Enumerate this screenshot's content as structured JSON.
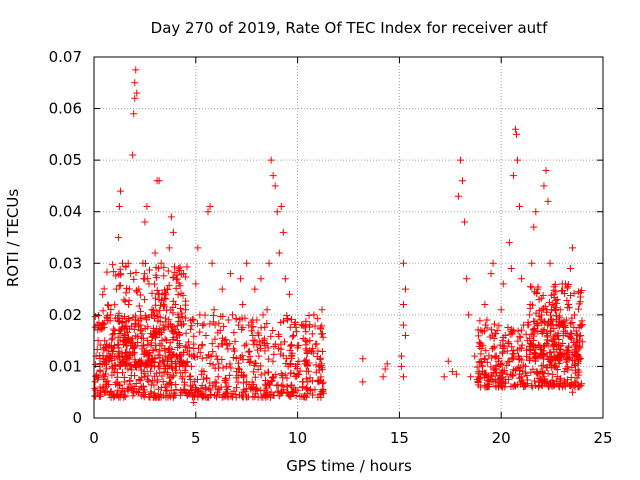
{
  "chart_data": {
    "type": "scatter",
    "title": "Day 270 of 2019, Rate Of TEC Index for receiver autf",
    "xlabel": "GPS time / hours",
    "ylabel": "ROTI / TECUs",
    "xlim": [
      0,
      25
    ],
    "ylim": [
      0,
      0.07
    ],
    "xticks": [
      0,
      5,
      10,
      15,
      20,
      25
    ],
    "yticks": [
      0,
      0.01,
      0.02,
      0.03,
      0.04,
      0.05,
      0.06,
      0.07
    ],
    "xtick_labels": [
      "0",
      "5",
      "10",
      "15",
      "20",
      "25"
    ],
    "ytick_labels": [
      "0",
      "0.01",
      "0.02",
      "0.03",
      "0.04",
      "0.05",
      "0.06",
      "0.07"
    ],
    "grid": true,
    "marker": "+",
    "color": "#ff0000",
    "series": [
      {
        "name": "ROTI",
        "points": [
          [
            0.1,
            0.012
          ],
          [
            0.2,
            0.015
          ],
          [
            0.3,
            0.009
          ],
          [
            0.4,
            0.018
          ],
          [
            0.5,
            0.011
          ],
          [
            0.6,
            0.007
          ],
          [
            0.7,
            0.013
          ],
          [
            0.8,
            0.02
          ],
          [
            0.9,
            0.01
          ],
          [
            1.0,
            0.014
          ],
          [
            1.1,
            0.025
          ],
          [
            1.2,
            0.035
          ],
          [
            1.25,
            0.041
          ],
          [
            1.3,
            0.044
          ],
          [
            1.4,
            0.03
          ],
          [
            1.5,
            0.016
          ],
          [
            1.6,
            0.012
          ],
          [
            1.7,
            0.022
          ],
          [
            1.8,
            0.028
          ],
          [
            1.9,
            0.051
          ],
          [
            1.95,
            0.059
          ],
          [
            2.0,
            0.062
          ],
          [
            2.0,
            0.065
          ],
          [
            2.05,
            0.0675
          ],
          [
            2.1,
            0.063
          ],
          [
            2.2,
            0.025
          ],
          [
            2.3,
            0.018
          ],
          [
            2.4,
            0.03
          ],
          [
            2.5,
            0.038
          ],
          [
            2.6,
            0.041
          ],
          [
            2.7,
            0.026
          ],
          [
            2.8,
            0.014
          ],
          [
            2.9,
            0.02
          ],
          [
            3.0,
            0.032
          ],
          [
            3.1,
            0.046
          ],
          [
            3.2,
            0.046
          ],
          [
            3.3,
            0.03
          ],
          [
            3.4,
            0.018
          ],
          [
            3.5,
            0.012
          ],
          [
            3.6,
            0.025
          ],
          [
            3.7,
            0.033
          ],
          [
            3.8,
            0.039
          ],
          [
            3.9,
            0.036
          ],
          [
            4.0,
            0.022
          ],
          [
            4.1,
            0.015
          ],
          [
            4.2,
            0.01
          ],
          [
            4.3,
            0.018
          ],
          [
            4.4,
            0.028
          ],
          [
            4.5,
            0.021
          ],
          [
            4.6,
            0.013
          ],
          [
            4.7,
            0.008
          ],
          [
            4.8,
            0.012
          ],
          [
            4.9,
            0.019
          ],
          [
            5.0,
            0.026
          ],
          [
            5.1,
            0.033
          ],
          [
            5.2,
            0.02
          ],
          [
            5.3,
            0.014
          ],
          [
            5.4,
            0.009
          ],
          [
            5.5,
            0.016
          ],
          [
            5.6,
            0.04
          ],
          [
            5.7,
            0.041
          ],
          [
            5.8,
            0.03
          ],
          [
            5.9,
            0.021
          ],
          [
            6.0,
            0.012
          ],
          [
            6.1,
            0.008
          ],
          [
            6.2,
            0.017
          ],
          [
            6.3,
            0.025
          ],
          [
            6.4,
            0.015
          ],
          [
            6.5,
            0.01
          ],
          [
            6.6,
            0.019
          ],
          [
            6.7,
            0.028
          ],
          [
            6.8,
            0.02
          ],
          [
            6.9,
            0.013
          ],
          [
            7.0,
            0.009
          ],
          [
            7.1,
            0.018
          ],
          [
            7.2,
            0.027
          ],
          [
            7.3,
            0.022
          ],
          [
            7.4,
            0.014
          ],
          [
            7.5,
            0.03
          ],
          [
            7.6,
            0.018
          ],
          [
            7.7,
            0.011
          ],
          [
            7.8,
            0.016
          ],
          [
            7.9,
            0.025
          ],
          [
            8.0,
            0.019
          ],
          [
            8.1,
            0.012
          ],
          [
            8.2,
            0.027
          ],
          [
            8.3,
            0.02
          ],
          [
            8.4,
            0.014
          ],
          [
            8.5,
            0.021
          ],
          [
            8.6,
            0.03
          ],
          [
            8.7,
            0.05
          ],
          [
            8.8,
            0.047
          ],
          [
            8.9,
            0.045
          ],
          [
            9.0,
            0.04
          ],
          [
            9.1,
            0.032
          ],
          [
            9.2,
            0.041
          ],
          [
            9.3,
            0.036
          ],
          [
            9.4,
            0.027
          ],
          [
            9.5,
            0.019
          ],
          [
            9.6,
            0.024
          ],
          [
            9.7,
            0.012
          ],
          [
            9.8,
            0.016
          ],
          [
            9.9,
            0.01
          ],
          [
            10.0,
            0.014
          ],
          [
            10.2,
            0.018
          ],
          [
            10.4,
            0.011
          ],
          [
            10.6,
            0.015
          ],
          [
            10.8,
            0.02
          ],
          [
            11.0,
            0.013
          ],
          [
            11.2,
            0.021
          ],
          [
            0.3,
            0.006
          ],
          [
            0.8,
            0.005
          ],
          [
            1.5,
            0.007
          ],
          [
            2.5,
            0.008
          ],
          [
            3.5,
            0.006
          ],
          [
            4.5,
            0.005
          ],
          [
            5.5,
            0.004
          ],
          [
            6.5,
            0.006
          ],
          [
            7.5,
            0.007
          ],
          [
            8.5,
            0.005
          ],
          [
            9.5,
            0.006
          ],
          [
            10.5,
            0.007
          ],
          [
            4.9,
            0.003
          ],
          [
            3.9,
            0.004
          ],
          [
            13.2,
            0.007
          ],
          [
            13.2,
            0.0115
          ],
          [
            14.2,
            0.008
          ],
          [
            14.3,
            0.0095
          ],
          [
            14.4,
            0.0105
          ],
          [
            15.1,
            0.012
          ],
          [
            15.2,
            0.018
          ],
          [
            15.2,
            0.022
          ],
          [
            15.3,
            0.025
          ],
          [
            15.2,
            0.03
          ],
          [
            15.3,
            0.016
          ],
          [
            15.1,
            0.01
          ],
          [
            15.2,
            0.008
          ],
          [
            17.2,
            0.008
          ],
          [
            17.4,
            0.011
          ],
          [
            17.6,
            0.009
          ],
          [
            17.8,
            0.0085
          ],
          [
            17.9,
            0.043
          ],
          [
            18.0,
            0.05
          ],
          [
            18.1,
            0.046
          ],
          [
            18.2,
            0.038
          ],
          [
            18.3,
            0.027
          ],
          [
            18.4,
            0.02
          ],
          [
            18.5,
            0.008
          ],
          [
            18.7,
            0.012
          ],
          [
            18.9,
            0.009
          ],
          [
            19.0,
            0.017
          ],
          [
            19.1,
            0.014
          ],
          [
            19.2,
            0.022
          ],
          [
            19.3,
            0.019
          ],
          [
            19.4,
            0.007
          ],
          [
            19.5,
            0.028
          ],
          [
            19.6,
            0.03
          ],
          [
            19.7,
            0.012
          ],
          [
            19.8,
            0.017
          ],
          [
            19.9,
            0.01
          ],
          [
            20.0,
            0.021
          ],
          [
            20.1,
            0.026
          ],
          [
            20.2,
            0.016
          ],
          [
            20.3,
            0.013
          ],
          [
            20.4,
            0.034
          ],
          [
            20.5,
            0.029
          ],
          [
            20.6,
            0.047
          ],
          [
            20.7,
            0.056
          ],
          [
            20.75,
            0.055
          ],
          [
            20.8,
            0.05
          ],
          [
            20.9,
            0.041
          ],
          [
            21.0,
            0.027
          ],
          [
            21.1,
            0.018
          ],
          [
            21.2,
            0.01
          ],
          [
            21.3,
            0.015
          ],
          [
            21.4,
            0.02
          ],
          [
            21.5,
            0.03
          ],
          [
            21.6,
            0.037
          ],
          [
            21.7,
            0.04
          ],
          [
            21.8,
            0.025
          ],
          [
            21.9,
            0.014
          ],
          [
            22.0,
            0.019
          ],
          [
            22.1,
            0.045
          ],
          [
            22.2,
            0.048
          ],
          [
            22.3,
            0.042
          ],
          [
            22.4,
            0.03
          ],
          [
            22.5,
            0.022
          ],
          [
            22.6,
            0.012
          ],
          [
            22.7,
            0.018
          ],
          [
            22.8,
            0.016
          ],
          [
            22.9,
            0.021
          ],
          [
            23.0,
            0.026
          ],
          [
            23.1,
            0.009
          ],
          [
            23.2,
            0.019
          ],
          [
            23.3,
            0.022
          ],
          [
            23.4,
            0.029
          ],
          [
            23.5,
            0.033
          ],
          [
            23.6,
            0.02
          ],
          [
            23.7,
            0.013
          ],
          [
            23.8,
            0.011
          ],
          [
            23.9,
            0.016
          ],
          [
            19.2,
            0.006
          ],
          [
            20.1,
            0.007
          ],
          [
            21.0,
            0.008
          ],
          [
            22.0,
            0.009
          ],
          [
            23.0,
            0.006
          ],
          [
            23.5,
            0.005
          ]
        ],
        "point_bands": [
          [
            0.0,
            11.3,
            0.004,
            0.02
          ],
          [
            0.4,
            4.6,
            0.01,
            0.03
          ],
          [
            18.8,
            24.0,
            0.006,
            0.019
          ],
          [
            21.3,
            24.0,
            0.011,
            0.026
          ]
        ]
      }
    ]
  }
}
